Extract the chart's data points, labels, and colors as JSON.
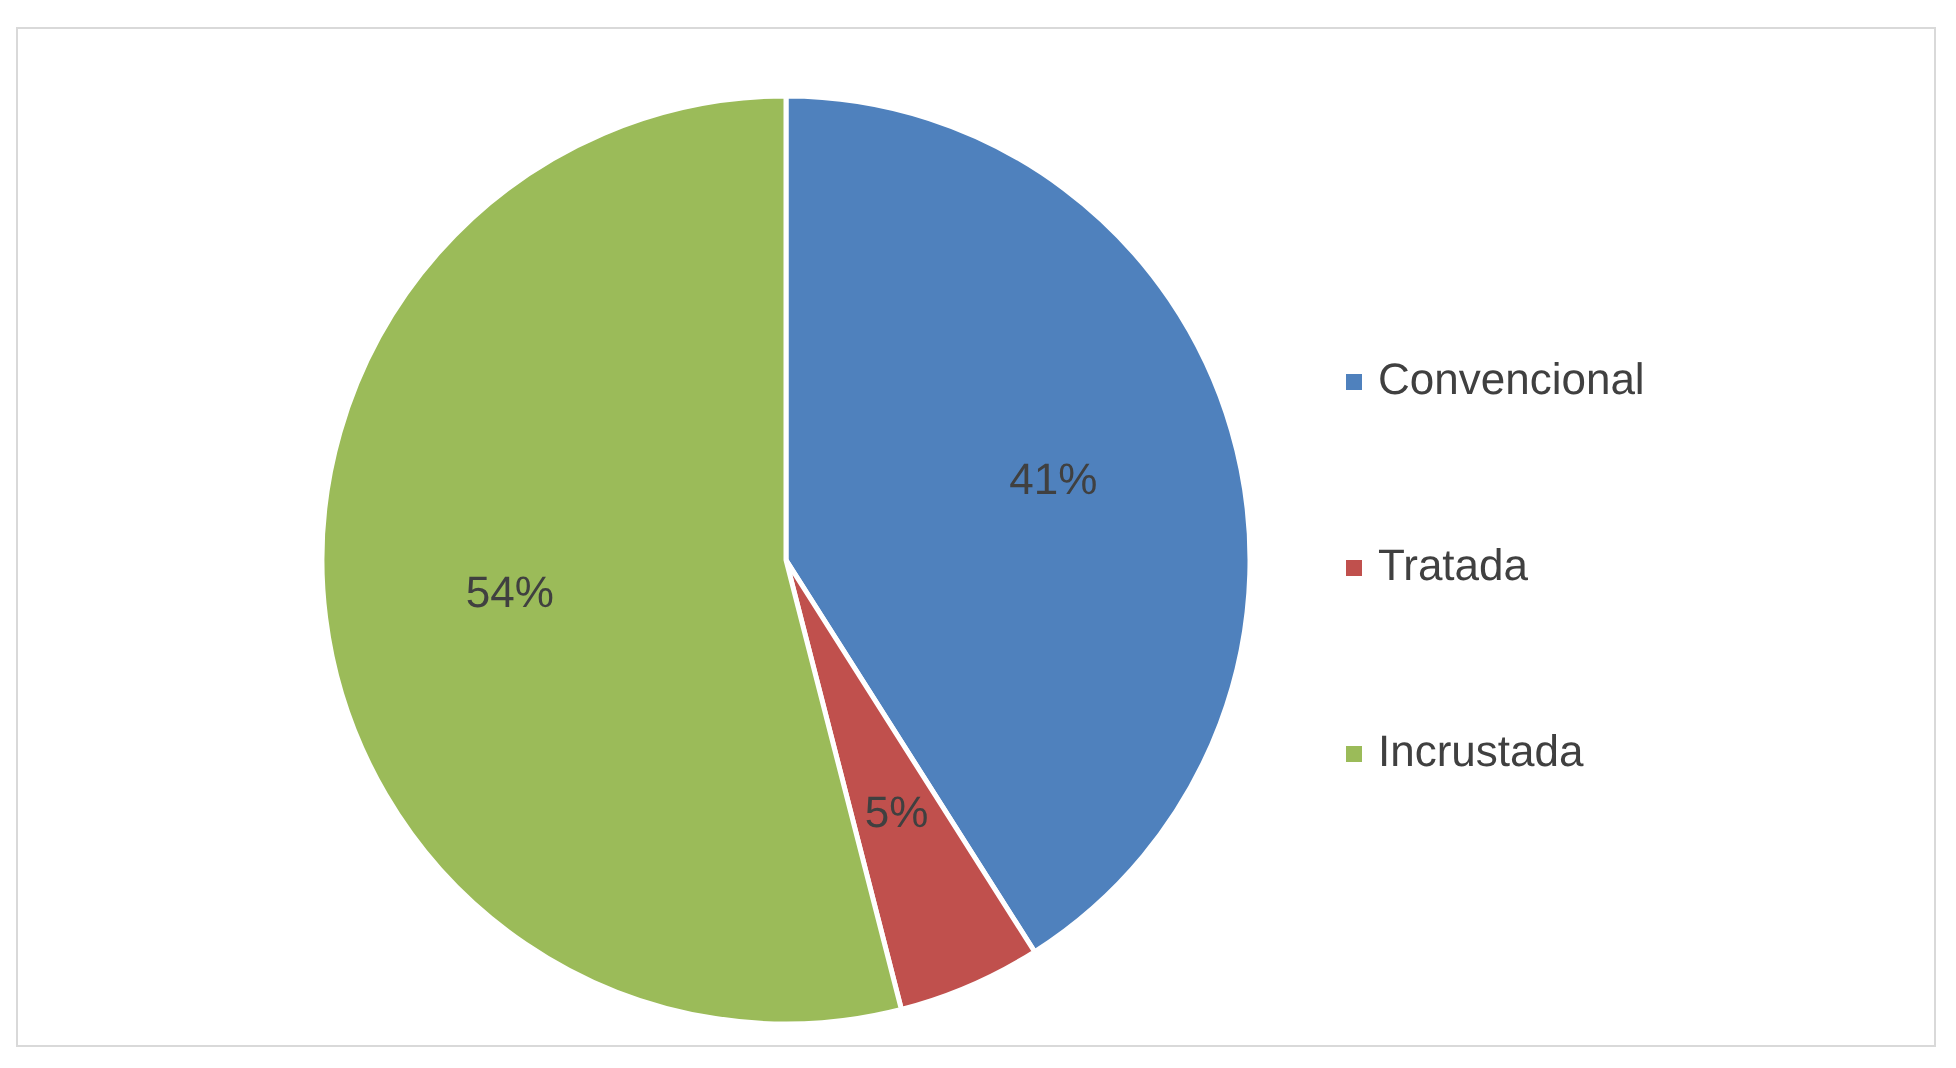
{
  "chart_data": {
    "type": "pie",
    "categories": [
      "Convencional",
      "Tratada",
      "Incrustada"
    ],
    "values": [
      41,
      5,
      54
    ],
    "colors": [
      "#4f81bd",
      "#c0504d",
      "#9bbb59"
    ],
    "value_labels": [
      "41%",
      "5%",
      "54%"
    ],
    "legend": "right"
  }
}
